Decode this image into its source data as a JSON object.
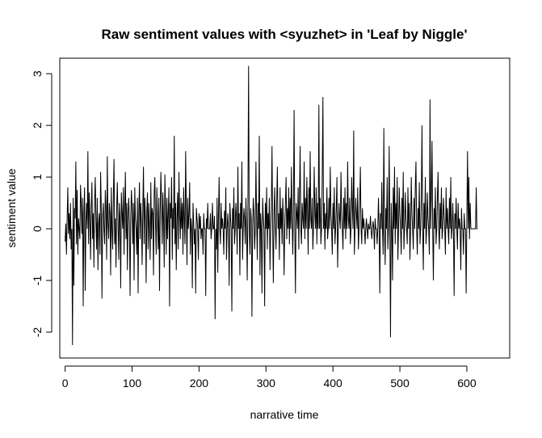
{
  "chart_data": {
    "type": "line",
    "title": "Raw sentiment values with <syuzhet> in 'Leaf by Niggle'",
    "xlabel": "narrative time",
    "ylabel": "sentiment value",
    "xlim": [
      -8,
      664
    ],
    "ylim": [
      -2.5,
      3.3
    ],
    "x_ticks": [
      0,
      100,
      200,
      300,
      400,
      500,
      600
    ],
    "y_ticks": [
      -2,
      -1,
      0,
      1,
      2,
      3
    ],
    "x_tick_labels": [
      "0",
      "100",
      "200",
      "300",
      "400",
      "500",
      "600"
    ],
    "y_tick_labels": [
      "-2",
      "-1",
      "0",
      "1",
      "2",
      "3"
    ],
    "grid": false,
    "line_color": "#000000",
    "series": [
      {
        "values": [
          -0.25,
          0.1,
          -0.5,
          0.2,
          0.8,
          -0.1,
          0.3,
          -0.2,
          0.5,
          -0.4,
          0.0,
          -2.25,
          0.6,
          -1.1,
          0.4,
          0.2,
          1.3,
          -0.3,
          0.75,
          -0.5,
          0.2,
          0.0,
          -0.2,
          0.85,
          0.5,
          -0.1,
          0.6,
          -1.5,
          0.3,
          0.8,
          -1.2,
          0.1,
          0.5,
          0.0,
          1.5,
          -0.3,
          0.7,
          0.2,
          -0.6,
          0.4,
          0.9,
          -0.2,
          0.3,
          -0.75,
          0.5,
          1.0,
          0.2,
          -0.4,
          0.6,
          -0.8,
          0.1,
          0.3,
          -0.5,
          1.1,
          0.4,
          -1.35,
          0.2,
          0.5,
          0.0,
          -0.3,
          0.75,
          0.4,
          -0.6,
          1.4,
          0.1,
          -0.2,
          0.5,
          0.3,
          -0.9,
          0.8,
          0.0,
          -0.4,
          0.6,
          1.35,
          -0.3,
          0.2,
          -0.75,
          0.4,
          0.9,
          0.1,
          -0.6,
          0.5,
          0.2,
          -1.15,
          0.7,
          0.3,
          0.0,
          0.8,
          -0.5,
          0.4,
          1.1,
          -0.2,
          0.5,
          -0.8,
          0.3,
          0.6,
          0.1,
          -1.3,
          0.2,
          0.75,
          0.4,
          -0.3,
          0.5,
          -1.0,
          0.8,
          0.2,
          0.0,
          -0.5,
          0.6,
          -1.25,
          0.3,
          0.9,
          -0.2,
          0.5,
          0.1,
          -0.7,
          0.4,
          1.2,
          -0.3,
          0.6,
          0.2,
          -1.05,
          0.35,
          0.7,
          -0.4,
          0.5,
          0.0,
          -0.6,
          0.9,
          -0.2,
          0.4,
          0.3,
          -0.9,
          0.7,
          1.0,
          0.1,
          -0.5,
          0.8,
          0.2,
          -0.4,
          0.6,
          -1.2,
          0.3,
          1.1,
          0.5,
          -0.3,
          0.7,
          0.2,
          -0.75,
          1.05,
          0.4,
          -0.5,
          0.6,
          -0.2,
          0.3,
          0.8,
          -1.5,
          0.5,
          0.2,
          1.0,
          -0.6,
          0.4,
          0.0,
          1.8,
          -0.3,
          0.5,
          -0.8,
          0.2,
          0.7,
          -0.4,
          1.1,
          0.3,
          -0.2,
          0.6,
          0.0,
          0.5,
          -0.5,
          0.8,
          0.2,
          -0.3,
          1.5,
          0.4,
          -0.7,
          0.6,
          0.0,
          0.3,
          0.9,
          -0.5,
          0.2,
          0.0,
          -1.15,
          0.5,
          0.1,
          -0.3,
          0.0,
          -1.25,
          0.4,
          0.2,
          0.0,
          -0.6,
          0.3,
          0.0,
          0.25,
          -0.2,
          0.0,
          0.0,
          -0.5,
          0.3,
          0.0,
          0.0,
          -1.3,
          0.2,
          0.0,
          0.5,
          0.0,
          0.0,
          0.0,
          0.3,
          -0.2,
          0.0,
          0.5,
          0.0,
          0.0,
          0.25,
          -1.75,
          0.0,
          -0.4,
          0.6,
          -0.85,
          0.2,
          1.0,
          0.0,
          -0.3,
          0.5,
          0.0,
          0.2,
          0.0,
          -0.5,
          0.35,
          0.0,
          0.8,
          -0.6,
          0.0,
          0.3,
          0.0,
          -1.1,
          0.5,
          0.2,
          0.0,
          -1.6,
          0.4,
          0.0,
          0.8,
          -0.3,
          0.0,
          0.5,
          0.2,
          -0.5,
          1.2,
          0.0,
          0.3,
          -0.9,
          0.5,
          0.0,
          1.3,
          -0.6,
          0.0,
          0.4,
          0.2,
          -0.3,
          0.6,
          0.0,
          -1.0,
          0.5,
          3.15,
          0.0,
          -0.5,
          0.4,
          0.2,
          -1.7,
          0.0,
          0.6,
          0.3,
          -0.4,
          0.0,
          1.3,
          0.2,
          -0.6,
          0.5,
          0.0,
          1.8,
          -0.9,
          0.3,
          0.0,
          -1.25,
          0.6,
          0.2,
          0.0,
          -1.5,
          0.5,
          0.0,
          0.8,
          -0.4,
          0.3,
          0.0,
          0.6,
          -0.8,
          0.0,
          0.4,
          1.6,
          0.0,
          -1.05,
          0.3,
          0.8,
          0.0,
          -0.4,
          0.5,
          1.2,
          0.0,
          0.3,
          -0.6,
          0.8,
          0.0,
          0.4,
          -0.3,
          0.6,
          0.2,
          -0.9,
          0.0,
          0.5,
          1.0,
          -0.2,
          0.4,
          0.0,
          0.8,
          -0.3,
          0.6,
          0.0,
          1.2,
          0.2,
          -0.5,
          0.4,
          2.3,
          0.0,
          -1.25,
          0.5,
          0.3,
          0.0,
          0.8,
          -0.4,
          0.6,
          1.6,
          0.0,
          -0.3,
          0.5,
          0.2,
          0.0,
          1.3,
          -0.2,
          0.6,
          0.0,
          1.0,
          0.3,
          -0.5,
          0.8,
          0.0,
          1.5,
          0.2,
          0.0,
          0.6,
          -0.4,
          0.0,
          1.2,
          0.3,
          0.0,
          0.8,
          -0.3,
          0.5,
          0.0,
          2.4,
          0.0,
          0.6,
          -0.3,
          0.0,
          1.0,
          2.55,
          0.0,
          0.5,
          -0.4,
          0.3,
          0.0,
          0.8,
          -0.2,
          0.0,
          0.6,
          0.0,
          1.2,
          0.3,
          0.0,
          -0.5,
          0.5,
          0.0,
          0.8,
          -0.3,
          0.0,
          0.4,
          1.0,
          -0.75,
          0.0,
          0.5,
          0.2,
          0.0,
          1.1,
          0.3,
          0.0,
          -0.4,
          0.6,
          0.0,
          0.8,
          -0.2,
          0.5,
          0.0,
          1.3,
          0.2,
          0.0,
          0.6,
          -0.3,
          0.0,
          1.0,
          0.4,
          0.0,
          1.9,
          -0.5,
          0.0,
          0.6,
          0.3,
          0.0,
          0.8,
          -0.4,
          0.0,
          0.5,
          1.2,
          0.0,
          -0.3,
          0.4,
          0.0,
          0.2,
          0.0,
          -0.3,
          0.0,
          0.2,
          0.0,
          -0.2,
          0.1,
          0.0,
          0.0,
          0.25,
          0.0,
          -0.2,
          0.0,
          0.15,
          0.0,
          -0.4,
          0.2,
          0.0,
          0.0,
          -0.3,
          0.0,
          0.6,
          0.0,
          -1.25,
          0.3,
          0.0,
          0.9,
          0.0,
          -0.5,
          1.95,
          0.0,
          -0.7,
          0.4,
          0.0,
          1.0,
          -0.4,
          0.0,
          1.6,
          0.0,
          -2.1,
          0.5,
          0.0,
          -1.0,
          0.8,
          0.0,
          1.2,
          -0.3,
          0.5,
          0.0,
          1.0,
          -0.6,
          0.0,
          0.8,
          0.3,
          0.0,
          -0.5,
          0.6,
          0.0,
          1.1,
          -0.4,
          0.0,
          0.7,
          0.2,
          0.0,
          -0.3,
          0.8,
          0.0,
          0.5,
          -0.6,
          0.0,
          1.0,
          0.3,
          0.0,
          -0.4,
          0.6,
          0.0,
          0.8,
          1.3,
          0.0,
          -0.5,
          0.4,
          0.0,
          0.9,
          -0.3,
          0.0,
          0.6,
          2.0,
          0.0,
          -0.8,
          0.5,
          0.0,
          1.0,
          -0.3,
          0.0,
          0.7,
          0.2,
          0.0,
          -0.5,
          2.5,
          0.0,
          0.6,
          1.7,
          0.0,
          -1.0,
          0.4,
          0.0,
          0.8,
          -0.3,
          0.0,
          0.6,
          1.1,
          0.0,
          -0.4,
          0.5,
          0.0,
          0.8,
          -0.2,
          0.0,
          0.6,
          0.3,
          0.0,
          -0.5,
          0.8,
          0.0,
          0.4,
          0.0,
          -0.3,
          0.6,
          0.0,
          1.0,
          -0.2,
          0.0,
          0.5,
          0.0,
          -1.3,
          0.3,
          0.0,
          0.6,
          0.0,
          -0.4,
          0.5,
          0.0,
          0.2,
          0.0,
          -0.8,
          0.4,
          0.0,
          0.0,
          -0.5,
          0.3,
          0.0,
          0.0,
          -1.25,
          0.2,
          1.5,
          0.0,
          1.0,
          -0.2,
          0.5,
          0.0,
          0.0,
          0.0,
          0.0,
          0.0,
          0.0,
          0.0,
          0.0,
          0.8,
          0.0,
          0.0
        ]
      }
    ]
  }
}
